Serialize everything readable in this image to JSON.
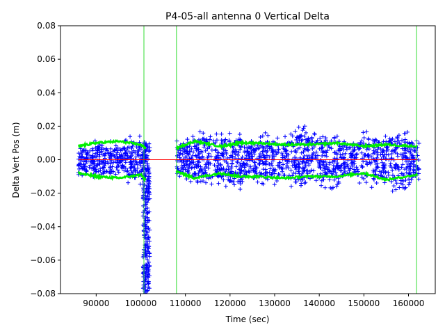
{
  "chart_data": {
    "type": "scatter",
    "title": "P4-05-all antenna 0 Vertical Delta",
    "xlabel": "Time (sec)",
    "ylabel": "Delta Vert Pos (m)",
    "xlim": [
      82000,
      166000
    ],
    "ylim": [
      -0.08,
      0.08
    ],
    "x_ticks": [
      90000,
      100000,
      110000,
      120000,
      130000,
      140000,
      150000,
      160000
    ],
    "x_tick_labels": [
      "90000",
      "100000",
      "110000",
      "120000",
      "130000",
      "140000",
      "150000",
      "160000"
    ],
    "y_ticks": [
      -0.08,
      -0.06,
      -0.04,
      -0.02,
      0.0,
      0.02,
      0.04,
      0.06,
      0.08
    ],
    "y_tick_labels": [
      "−0.08",
      "−0.06",
      "−0.04",
      "−0.02",
      "0.00",
      "0.02",
      "0.04",
      "0.06",
      "0.08"
    ],
    "grid": false,
    "colors": {
      "points": "#0000ff",
      "envelope": "#00ee00",
      "zero_line": "#ff0000",
      "green_lines": "#33dd33"
    },
    "series": [
      {
        "marker": "+",
        "segments": [
          {
            "x_start": 86000,
            "x_end": 101000,
            "y_min": -0.012,
            "y_max": 0.02
          },
          {
            "x_start": 100500,
            "x_end": 102000,
            "y_min": -0.08,
            "y_max": 0.01
          },
          {
            "x_start": 108000,
            "x_end": 162500,
            "y_min": -0.022,
            "y_max": 0.02
          }
        ]
      },
      {
        "marker": "line",
        "description_values": "upper/lower envelope near ±0.008 to ±0.012",
        "upper": [
          [
            86000,
            0.008
          ],
          [
            90000,
            0.01
          ],
          [
            95000,
            0.011
          ],
          [
            100000,
            0.009
          ],
          [
            101000,
            0.007
          ],
          [
            108000,
            0.007
          ],
          [
            112000,
            0.011
          ],
          [
            118000,
            0.008
          ],
          [
            122000,
            0.01
          ],
          [
            126000,
            0.01
          ],
          [
            132000,
            0.009
          ],
          [
            138000,
            0.009
          ],
          [
            144000,
            0.01
          ],
          [
            150000,
            0.008
          ],
          [
            155000,
            0.009
          ],
          [
            162000,
            0.008
          ]
        ],
        "lower": [
          [
            86000,
            -0.008
          ],
          [
            90000,
            -0.01
          ],
          [
            95000,
            -0.011
          ],
          [
            100000,
            -0.009
          ],
          [
            101000,
            -0.012
          ],
          [
            108000,
            -0.007
          ],
          [
            112000,
            -0.011
          ],
          [
            118000,
            -0.008
          ],
          [
            122000,
            -0.01
          ],
          [
            126000,
            -0.01
          ],
          [
            132000,
            -0.011
          ],
          [
            138000,
            -0.01
          ],
          [
            144000,
            -0.01
          ],
          [
            150000,
            -0.008
          ],
          [
            155000,
            -0.012
          ],
          [
            162000,
            -0.009
          ]
        ]
      },
      {
        "marker": "line",
        "zero_line": {
          "x_start": 86000,
          "x_end": 162000,
          "y": 0.0
        }
      },
      {
        "marker": "line",
        "vertical_lines_x": [
          100700,
          108000,
          161800
        ]
      }
    ]
  }
}
